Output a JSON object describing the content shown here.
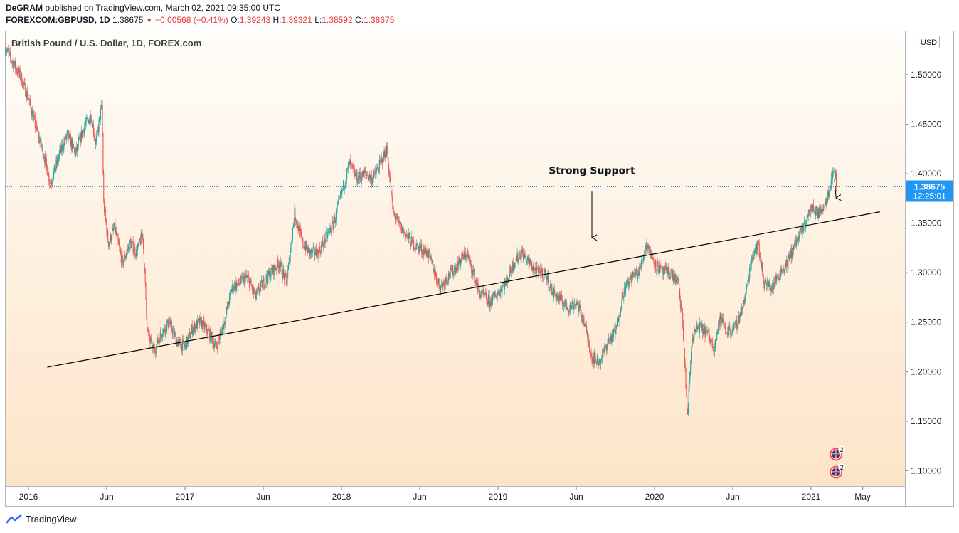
{
  "header": {
    "author": "DeGRAM",
    "published": "published on TradingView.com, March 02, 2021 09:35:00 UTC",
    "symbol": "FOREXCOM:GBPUSD, 1D",
    "last": "1.38675",
    "change": "−0.00568 (−0.41%)",
    "open_label": "O:",
    "open": "1.39243",
    "high_label": "H:",
    "high": "1.39321",
    "low_label": "L:",
    "low": "1.38592",
    "close_label": "C:",
    "close": "1.38675"
  },
  "footer": {
    "brand": "TradingView"
  },
  "colors": {
    "up": "#26a69a",
    "down": "#ef5350",
    "price_label": "#2196f3",
    "bg_top": "#fffdf9",
    "bg_bottom": "#fde4c8",
    "trendline": "#000000"
  },
  "chart_data": {
    "type": "candlestick",
    "title": "British Pound / U.S. Dollar, 1D, FOREX.com",
    "currency": "USD",
    "xlim": [
      2015.85,
      2021.6
    ],
    "ylim": [
      1.0845,
      1.5445
    ],
    "y_ticks": [
      "1.10000",
      "1.15000",
      "1.20000",
      "1.25000",
      "1.30000",
      "1.35000",
      "1.40000",
      "1.45000",
      "1.50000"
    ],
    "x_ticks": [
      {
        "t": 2016.0,
        "label": "2016"
      },
      {
        "t": 2016.5,
        "label": "Jun"
      },
      {
        "t": 2017.0,
        "label": "2017"
      },
      {
        "t": 2017.5,
        "label": "Jun"
      },
      {
        "t": 2018.0,
        "label": "2018"
      },
      {
        "t": 2018.5,
        "label": "Jun"
      },
      {
        "t": 2019.0,
        "label": "2019"
      },
      {
        "t": 2019.5,
        "label": "Jun"
      },
      {
        "t": 2020.0,
        "label": "2020"
      },
      {
        "t": 2020.5,
        "label": "Jun"
      },
      {
        "t": 2021.0,
        "label": "2021"
      },
      {
        "t": 2021.33,
        "label": "May"
      }
    ],
    "last_price": {
      "value": 1.38675,
      "label": "1.38675",
      "countdown": "12:25:01"
    },
    "price_path": [
      [
        2015.85,
        1.527
      ],
      [
        2015.9,
        1.512
      ],
      [
        2015.95,
        1.498
      ],
      [
        2016.0,
        1.475
      ],
      [
        2016.05,
        1.445
      ],
      [
        2016.1,
        1.418
      ],
      [
        2016.14,
        1.39
      ],
      [
        2016.2,
        1.42
      ],
      [
        2016.25,
        1.44
      ],
      [
        2016.3,
        1.42
      ],
      [
        2016.35,
        1.445
      ],
      [
        2016.4,
        1.46
      ],
      [
        2016.43,
        1.43
      ],
      [
        2016.47,
        1.47
      ],
      [
        2016.48,
        1.37
      ],
      [
        2016.51,
        1.33
      ],
      [
        2016.55,
        1.345
      ],
      [
        2016.6,
        1.31
      ],
      [
        2016.65,
        1.33
      ],
      [
        2016.69,
        1.32
      ],
      [
        2016.73,
        1.34
      ],
      [
        2016.76,
        1.24
      ],
      [
        2016.8,
        1.22
      ],
      [
        2016.85,
        1.24
      ],
      [
        2016.9,
        1.25
      ],
      [
        2016.95,
        1.23
      ],
      [
        2017.0,
        1.225
      ],
      [
        2017.05,
        1.245
      ],
      [
        2017.1,
        1.25
      ],
      [
        2017.15,
        1.24
      ],
      [
        2017.2,
        1.225
      ],
      [
        2017.25,
        1.25
      ],
      [
        2017.3,
        1.285
      ],
      [
        2017.35,
        1.29
      ],
      [
        2017.4,
        1.295
      ],
      [
        2017.45,
        1.275
      ],
      [
        2017.5,
        1.29
      ],
      [
        2017.55,
        1.3
      ],
      [
        2017.6,
        1.31
      ],
      [
        2017.65,
        1.29
      ],
      [
        2017.7,
        1.36
      ],
      [
        2017.75,
        1.33
      ],
      [
        2017.8,
        1.32
      ],
      [
        2017.85,
        1.32
      ],
      [
        2017.9,
        1.335
      ],
      [
        2017.95,
        1.35
      ],
      [
        2018.0,
        1.38
      ],
      [
        2018.05,
        1.41
      ],
      [
        2018.1,
        1.395
      ],
      [
        2018.15,
        1.4
      ],
      [
        2018.2,
        1.395
      ],
      [
        2018.25,
        1.41
      ],
      [
        2018.29,
        1.425
      ],
      [
        2018.33,
        1.36
      ],
      [
        2018.38,
        1.345
      ],
      [
        2018.45,
        1.33
      ],
      [
        2018.55,
        1.32
      ],
      [
        2018.63,
        1.285
      ],
      [
        2018.7,
        1.3
      ],
      [
        2018.8,
        1.32
      ],
      [
        2018.88,
        1.28
      ],
      [
        2018.95,
        1.27
      ],
      [
        2019.0,
        1.28
      ],
      [
        2019.05,
        1.29
      ],
      [
        2019.1,
        1.31
      ],
      [
        2019.15,
        1.32
      ],
      [
        2019.2,
        1.31
      ],
      [
        2019.25,
        1.3
      ],
      [
        2019.3,
        1.3
      ],
      [
        2019.35,
        1.28
      ],
      [
        2019.45,
        1.265
      ],
      [
        2019.5,
        1.27
      ],
      [
        2019.55,
        1.25
      ],
      [
        2019.6,
        1.215
      ],
      [
        2019.65,
        1.21
      ],
      [
        2019.7,
        1.23
      ],
      [
        2019.75,
        1.24
      ],
      [
        2019.8,
        1.28
      ],
      [
        2019.85,
        1.295
      ],
      [
        2019.9,
        1.3
      ],
      [
        2019.95,
        1.33
      ],
      [
        2020.0,
        1.31
      ],
      [
        2020.05,
        1.3
      ],
      [
        2020.1,
        1.3
      ],
      [
        2020.15,
        1.29
      ],
      [
        2020.18,
        1.25
      ],
      [
        2020.21,
        1.155
      ],
      [
        2020.24,
        1.235
      ],
      [
        2020.28,
        1.245
      ],
      [
        2020.33,
        1.24
      ],
      [
        2020.38,
        1.225
      ],
      [
        2020.42,
        1.255
      ],
      [
        2020.46,
        1.24
      ],
      [
        2020.52,
        1.245
      ],
      [
        2020.58,
        1.275
      ],
      [
        2020.62,
        1.315
      ],
      [
        2020.66,
        1.33
      ],
      [
        2020.7,
        1.29
      ],
      [
        2020.75,
        1.285
      ],
      [
        2020.8,
        1.3
      ],
      [
        2020.85,
        1.31
      ],
      [
        2020.9,
        1.33
      ],
      [
        2020.95,
        1.345
      ],
      [
        2021.0,
        1.365
      ],
      [
        2021.05,
        1.36
      ],
      [
        2021.1,
        1.375
      ],
      [
        2021.13,
        1.395
      ],
      [
        2021.15,
        1.405
      ],
      [
        2021.165,
        1.387
      ]
    ],
    "trendline": {
      "points": [
        [
          2016.12,
          1.2045
        ],
        [
          2021.44,
          1.3615
        ]
      ]
    },
    "annotations": [
      {
        "text": "Strong Support",
        "x": 2019.6,
        "y": 1.3995,
        "arrow_to": [
          2019.6,
          1.3355
        ],
        "arrow_from": [
          2019.6,
          1.382
        ]
      },
      {
        "text": "",
        "arrow_from": [
          2021.15,
          1.394
        ],
        "arrow_to": [
          2021.16,
          1.3755
        ]
      }
    ],
    "event_badges": [
      {
        "x": 2021.16,
        "y": 1.1165,
        "count": "2"
      },
      {
        "x": 2021.16,
        "y": 1.0985,
        "count": "2"
      }
    ]
  }
}
